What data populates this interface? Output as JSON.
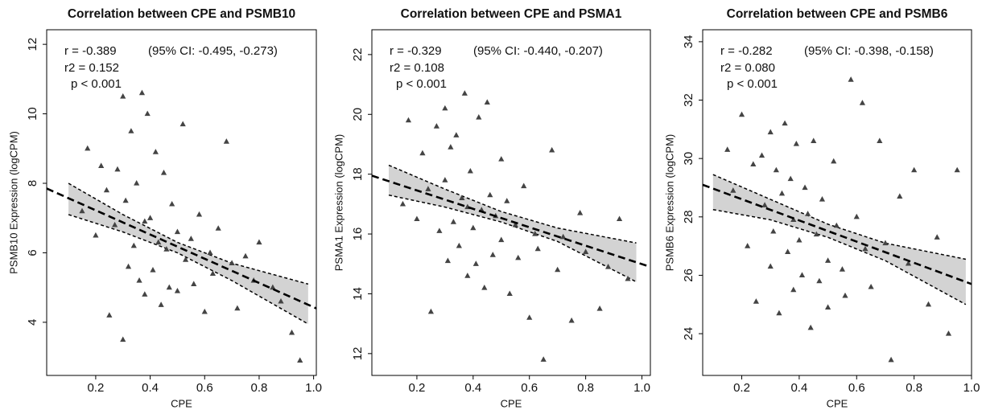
{
  "chart_data": [
    {
      "type": "scatter",
      "title": "Correlation between CPE and PSMB10",
      "x_label": "CPE",
      "y_label": "PSMB10 Expression (logCPM)",
      "annotations": [
        "r = -0.389",
        "(95% CI: -0.495, -0.273)",
        "r2 =  0.152",
        "p <  0.001"
      ],
      "color": "#444444",
      "x": [
        0.15,
        0.17,
        0.2,
        0.22,
        0.24,
        0.25,
        0.27,
        0.28,
        0.3,
        0.3,
        0.31,
        0.32,
        0.33,
        0.34,
        0.35,
        0.36,
        0.37,
        0.38,
        0.38,
        0.39,
        0.4,
        0.41,
        0.42,
        0.43,
        0.44,
        0.45,
        0.46,
        0.47,
        0.48,
        0.5,
        0.5,
        0.52,
        0.53,
        0.55,
        0.56,
        0.58,
        0.6,
        0.62,
        0.63,
        0.65,
        0.68,
        0.7,
        0.72,
        0.75,
        0.78,
        0.8,
        0.85,
        0.88,
        0.92,
        0.95
      ],
      "y": [
        7.2,
        9.0,
        6.5,
        8.5,
        7.8,
        4.2,
        6.8,
        8.4,
        3.5,
        10.5,
        7.5,
        5.6,
        9.5,
        6.2,
        8.0,
        5.2,
        10.6,
        6.9,
        4.8,
        10.0,
        7.0,
        5.5,
        8.9,
        6.3,
        4.5,
        8.3,
        6.1,
        5.0,
        7.4,
        6.6,
        4.9,
        9.7,
        5.8,
        6.4,
        5.1,
        7.1,
        4.3,
        6.0,
        5.4,
        6.7,
        9.2,
        5.7,
        4.4,
        5.9,
        5.2,
        6.3,
        5.0,
        4.6,
        3.7,
        2.9
      ],
      "fit": {
        "x": [
          0.02,
          1.01
        ],
        "y": [
          7.85,
          4.4
        ]
      },
      "ci": {
        "x": [
          0.1,
          0.3,
          0.5,
          0.7,
          0.98
        ],
        "lower": [
          7.1,
          6.6,
          6.0,
          5.2,
          3.95
        ],
        "upper": [
          8.0,
          7.1,
          6.3,
          5.7,
          5.1
        ]
      },
      "xlim": [
        0.02,
        1.01
      ],
      "ylim": [
        2.47,
        12.42
      ],
      "xticks": [
        0.2,
        0.4,
        0.6,
        0.8,
        {
          "value": 1,
          "label": "1.0"
        }
      ],
      "yticks": [
        4,
        6,
        8,
        10,
        12
      ]
    },
    {
      "type": "scatter",
      "title": "Correlation between CPE and PSMA1",
      "x_label": "CPE",
      "y_label": "PSMA1 Expression (logCPM)",
      "annotations": [
        "r = -0.329",
        "(95% CI: -0.440, -0.207)",
        "r2 =  0.108",
        "p < 0.001"
      ],
      "color": "#444444",
      "x": [
        0.15,
        0.17,
        0.2,
        0.22,
        0.24,
        0.25,
        0.27,
        0.28,
        0.3,
        0.3,
        0.31,
        0.32,
        0.33,
        0.34,
        0.35,
        0.36,
        0.37,
        0.38,
        0.38,
        0.39,
        0.4,
        0.41,
        0.42,
        0.43,
        0.44,
        0.45,
        0.46,
        0.47,
        0.48,
        0.5,
        0.5,
        0.52,
        0.53,
        0.55,
        0.56,
        0.58,
        0.6,
        0.62,
        0.63,
        0.65,
        0.68,
        0.7,
        0.72,
        0.75,
        0.78,
        0.8,
        0.85,
        0.88,
        0.92,
        0.95
      ],
      "y": [
        17.0,
        19.8,
        16.5,
        18.7,
        17.5,
        13.4,
        19.6,
        16.1,
        20.2,
        17.8,
        15.1,
        18.9,
        16.4,
        19.3,
        15.6,
        17.2,
        20.7,
        16.9,
        14.6,
        18.1,
        16.2,
        15.0,
        19.9,
        16.8,
        14.2,
        20.4,
        17.3,
        15.3,
        16.6,
        18.5,
        15.8,
        17.1,
        14.0,
        16.3,
        15.2,
        17.6,
        13.2,
        16.0,
        15.5,
        11.8,
        18.8,
        14.8,
        15.9,
        13.1,
        16.7,
        15.4,
        13.5,
        14.9,
        16.5,
        14.5
      ],
      "fit": {
        "x": [
          0.04,
          1.03
        ],
        "y": [
          17.95,
          14.9
        ]
      },
      "ci": {
        "x": [
          0.1,
          0.3,
          0.5,
          0.7,
          0.98
        ],
        "lower": [
          17.3,
          16.9,
          16.4,
          15.75,
          14.4
        ],
        "upper": [
          18.3,
          17.5,
          16.75,
          16.2,
          15.7
        ]
      },
      "xlim": [
        0.04,
        1.03
      ],
      "ylim": [
        11.27,
        22.83
      ],
      "xticks": [
        0.2,
        0.4,
        0.6,
        0.8,
        {
          "value": 1,
          "label": "1.0"
        }
      ],
      "yticks": [
        12,
        14,
        16,
        18,
        20,
        22
      ]
    },
    {
      "type": "scatter",
      "title": "Correlation between CPE and PSMB6",
      "x_label": "CPE",
      "y_label": "PSMB6 Expression (logCPM)",
      "annotations": [
        "r = -0.282",
        "(95% CI: -0.398, -0.158)",
        "r2 =  0.080",
        "p < 0.001"
      ],
      "color": "#444444",
      "x": [
        0.15,
        0.17,
        0.2,
        0.22,
        0.24,
        0.25,
        0.27,
        0.28,
        0.3,
        0.3,
        0.31,
        0.32,
        0.33,
        0.34,
        0.35,
        0.36,
        0.37,
        0.38,
        0.38,
        0.39,
        0.4,
        0.41,
        0.42,
        0.43,
        0.44,
        0.45,
        0.46,
        0.47,
        0.48,
        0.5,
        0.5,
        0.52,
        0.53,
        0.55,
        0.56,
        0.58,
        0.6,
        0.62,
        0.63,
        0.65,
        0.68,
        0.7,
        0.72,
        0.75,
        0.78,
        0.8,
        0.85,
        0.88,
        0.92,
        0.95
      ],
      "y": [
        30.3,
        28.9,
        31.5,
        27.0,
        29.8,
        25.1,
        30.1,
        28.4,
        26.3,
        30.9,
        27.5,
        29.6,
        24.7,
        28.8,
        31.2,
        26.8,
        29.3,
        27.9,
        25.5,
        30.5,
        27.2,
        26.0,
        29.0,
        28.1,
        24.2,
        30.6,
        27.4,
        25.8,
        28.6,
        26.5,
        24.9,
        29.9,
        27.7,
        26.2,
        25.3,
        32.7,
        28.0,
        31.9,
        26.9,
        25.6,
        30.6,
        27.1,
        23.1,
        28.7,
        26.4,
        29.6,
        25.0,
        27.3,
        24.0,
        29.6
      ],
      "fit": {
        "x": [
          0.064,
          1.0
        ],
        "y": [
          29.1,
          25.7
        ]
      },
      "ci": {
        "x": [
          0.1,
          0.3,
          0.5,
          0.7,
          0.98
        ],
        "lower": [
          28.25,
          27.9,
          27.3,
          26.5,
          25.0
        ],
        "upper": [
          29.45,
          28.6,
          27.75,
          27.1,
          26.55
        ]
      },
      "xlim": [
        0.064,
        1.0
      ],
      "ylim": [
        22.57,
        34.41
      ],
      "xticks": [
        0.2,
        0.4,
        0.6,
        0.8,
        {
          "value": 1,
          "label": "1.0"
        }
      ],
      "yticks": [
        24,
        26,
        28,
        30,
        32,
        34
      ]
    }
  ]
}
